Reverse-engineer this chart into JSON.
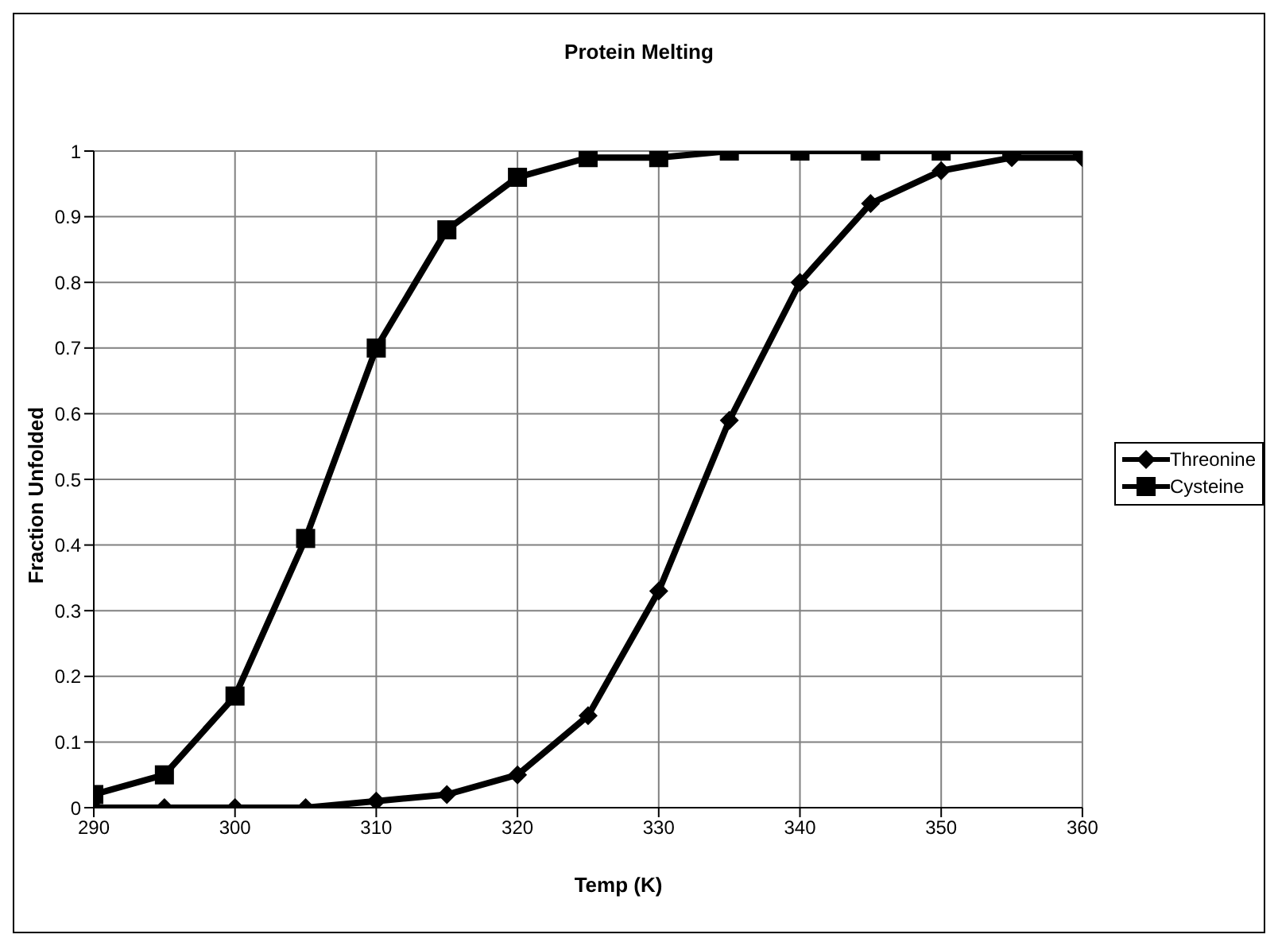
{
  "chart_data": {
    "type": "line",
    "title": "Protein Melting",
    "xlabel": "Temp (K)",
    "ylabel": "Fraction Unfolded",
    "x": [
      290,
      295,
      300,
      305,
      310,
      315,
      320,
      325,
      330,
      335,
      340,
      345,
      350,
      355,
      360
    ],
    "series": [
      {
        "name": "Threonine",
        "color": "#000000",
        "marker": "diamond",
        "values": [
          0.0,
          0.0,
          0.0,
          0.0,
          0.01,
          0.02,
          0.05,
          0.14,
          0.33,
          0.59,
          0.8,
          0.92,
          0.97,
          0.99,
          0.99
        ]
      },
      {
        "name": "Cysteine",
        "color": "#000000",
        "marker": "square",
        "values": [
          0.02,
          0.05,
          0.17,
          0.41,
          0.7,
          0.88,
          0.96,
          0.99,
          0.99,
          1.0,
          1.0,
          1.0,
          1.0,
          1.0,
          1.0
        ]
      }
    ],
    "xlim": [
      290,
      360
    ],
    "xticks": [
      290,
      300,
      310,
      320,
      330,
      340,
      350,
      360
    ],
    "ylim": [
      0,
      1
    ],
    "yticks": [
      0,
      0.1,
      0.2,
      0.3,
      0.4,
      0.5,
      0.6,
      0.7,
      0.8,
      0.9,
      1
    ],
    "grid": true,
    "legend": "right",
    "line_style": "solid"
  }
}
